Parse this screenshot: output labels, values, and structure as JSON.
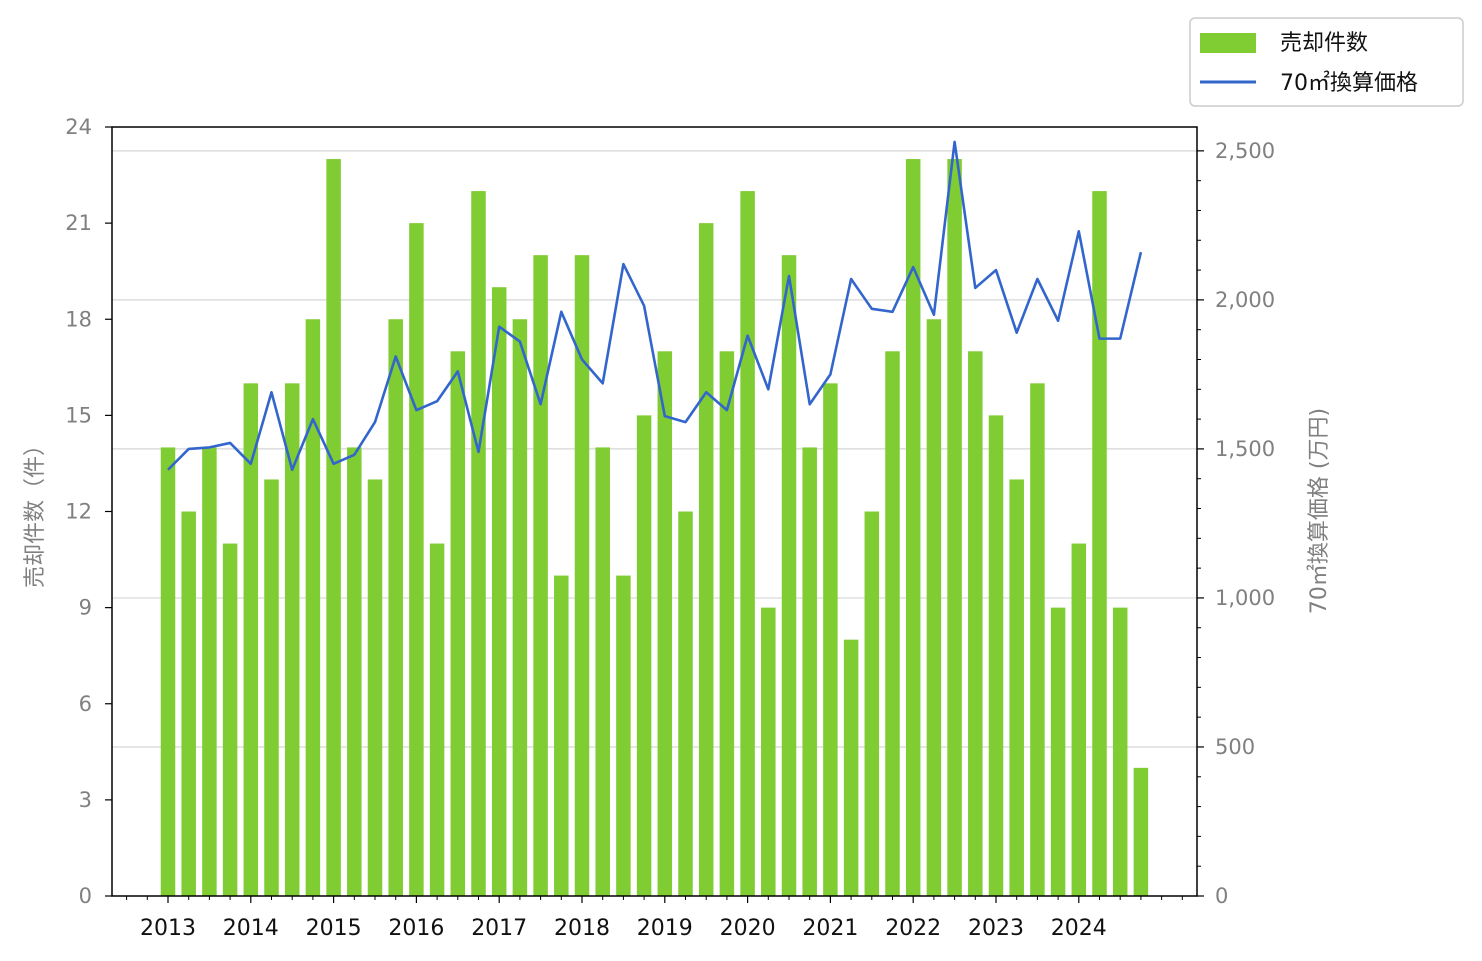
{
  "chart_data": {
    "type": "bar",
    "x_axis": {
      "tick_labels": [
        "2013",
        "2014",
        "2015",
        "2016",
        "2017",
        "2018",
        "2019",
        "2020",
        "2021",
        "2022",
        "2023",
        "2024"
      ]
    },
    "y_left": {
      "label": "売却件数（件）",
      "ylim": [
        0,
        24
      ],
      "ticks": [
        0,
        3,
        6,
        9,
        12,
        15,
        18,
        21,
        24
      ]
    },
    "y_right": {
      "label": "70㎡換算価格 (万円)",
      "ylim": [
        0,
        2580
      ],
      "ticks": [
        0,
        500,
        1000,
        1500,
        2000,
        2500
      ],
      "tick_labels": [
        "0",
        "500",
        "1,000",
        "1,500",
        "2,000",
        "2,500"
      ]
    },
    "grid": "horizontal (right axis)",
    "legend_position": "top-right outside",
    "series": [
      {
        "name": "売却件数",
        "type": "bar",
        "axis": "left",
        "color": "#80cc33",
        "values": [
          14,
          12,
          14,
          11,
          16,
          13,
          16,
          18,
          23,
          14,
          13,
          18,
          21,
          11,
          17,
          22,
          19,
          18,
          20,
          10,
          20,
          14,
          10,
          15,
          17,
          12,
          21,
          17,
          22,
          9,
          20,
          14,
          16,
          8,
          12,
          17,
          23,
          18,
          23,
          17,
          15,
          13,
          16,
          9,
          11,
          22,
          9,
          4
        ]
      },
      {
        "name": "70㎡換算価格",
        "type": "line",
        "axis": "right",
        "color": "#3366cc",
        "values": [
          1430,
          1500,
          1505,
          1520,
          1450,
          1690,
          1430,
          1600,
          1450,
          1480,
          1590,
          1810,
          1630,
          1660,
          1760,
          1490,
          1910,
          1860,
          1650,
          1960,
          1800,
          1720,
          2120,
          1980,
          1610,
          1590,
          1690,
          1630,
          1880,
          1700,
          2080,
          1650,
          1750,
          2070,
          1970,
          1960,
          2110,
          1950,
          2530,
          2040,
          2100,
          1890,
          2070,
          1930,
          2230,
          1870,
          1870,
          2160
        ]
      }
    ]
  }
}
